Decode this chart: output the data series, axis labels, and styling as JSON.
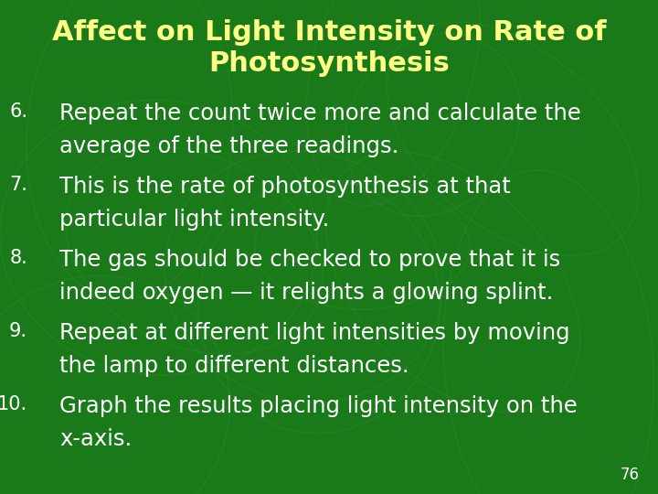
{
  "title_line1": "Affect on Light Intensity on Rate of",
  "title_line2": "Photosynthesis",
  "title_color": "#FFFF88",
  "background_color": "#1a7a1a",
  "text_color": "#FFFFFF",
  "number_color": "#FFFFFF",
  "page_number": "76",
  "title_fontsize": 22,
  "body_fontsize": 17.5,
  "num_fontsize": 15,
  "items": [
    {
      "number": "6.",
      "lines": [
        "Repeat the count twice more and calculate the",
        "average of the three readings."
      ]
    },
    {
      "number": "7.",
      "lines": [
        "This is the rate of photosynthesis at that",
        "particular light intensity."
      ]
    },
    {
      "number": "8.",
      "lines": [
        "The gas should be checked to prove that it is",
        "indeed oxygen — it relights a glowing splint."
      ]
    },
    {
      "number": "9.",
      "lines": [
        "Repeat at different light intensities by moving",
        "the lamp to different distances."
      ]
    },
    {
      "number": "10.",
      "lines": [
        "Graph the results placing light intensity on the",
        "x-axis."
      ]
    }
  ]
}
